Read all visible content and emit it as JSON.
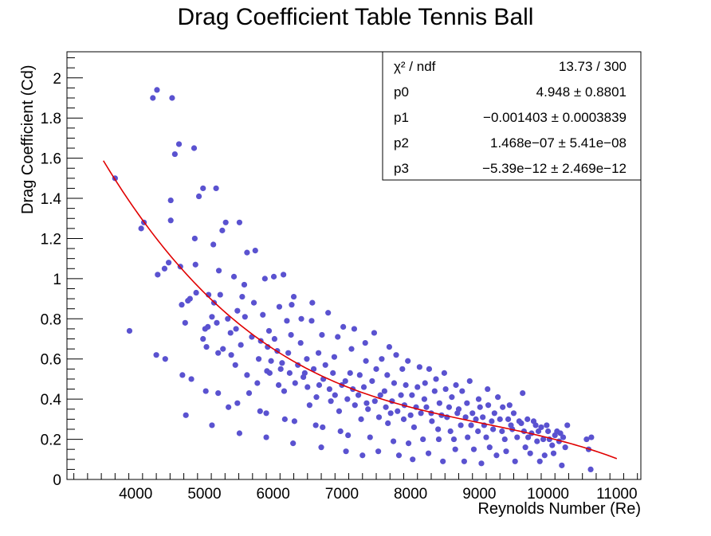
{
  "chart_data": {
    "type": "scatter",
    "title": "Drag Coefficient Table Tennis Ball",
    "xlabel": "Reynolds Number (Re)",
    "ylabel": "Drag Coefficient (Cd)",
    "xlim": [
      3000,
      11350
    ],
    "ylim": [
      0,
      2.13
    ],
    "x_ticks": [
      4000,
      5000,
      6000,
      7000,
      8000,
      9000,
      10000,
      11000
    ],
    "x_tick_labels": [
      "4000",
      "5000",
      "6000",
      "7000",
      "8000",
      "9000",
      "10000",
      "11000"
    ],
    "y_ticks": [
      0,
      0.2,
      0.4,
      0.6,
      0.8,
      1,
      1.2,
      1.4,
      1.6,
      1.8,
      2
    ],
    "y_tick_labels": [
      "0",
      "0.2",
      "0.4",
      "0.6",
      "0.8",
      "1",
      "1.2",
      "1.4",
      "1.6",
      "1.8",
      "2"
    ],
    "grid": false,
    "colors": {
      "points": "#5a52d0",
      "fit": "#e00000",
      "frame": "#000000"
    },
    "fit": {
      "function": "pol3",
      "x_range": [
        3530,
        11000
      ],
      "params": [
        4.948,
        -0.001403,
        1.468e-07,
        -5.39e-12
      ]
    },
    "stats_box": {
      "position": "top-right",
      "rows": [
        {
          "label": "χ² / ndf",
          "value": "13.73 / 300"
        },
        {
          "label": "p0",
          "value": "4.948 ± 0.8801"
        },
        {
          "label": "p1",
          "value": "−0.001403 ± 0.0003839"
        },
        {
          "label": "p2",
          "value": "1.468e−07 ± 5.41e−08"
        },
        {
          "label": "p3",
          "value": "−5.39e−12 ± 2.469e−12"
        }
      ]
    },
    "series": [
      {
        "points": [
          [
            3700,
            1.5
          ],
          [
            3910,
            0.74
          ],
          [
            4080,
            1.25
          ],
          [
            4120,
            1.28
          ],
          [
            4250,
            1.9
          ],
          [
            4310,
            1.94
          ],
          [
            4320,
            1.02
          ],
          [
            4300,
            0.62
          ],
          [
            4420,
            1.05
          ],
          [
            4430,
            0.6
          ],
          [
            4480,
            1.08
          ],
          [
            4510,
            1.29
          ],
          [
            4510,
            1.39
          ],
          [
            4530,
            1.9
          ],
          [
            4570,
            1.62
          ],
          [
            4630,
            1.67
          ],
          [
            4650,
            1.06
          ],
          [
            4670,
            0.87
          ],
          [
            4680,
            0.52
          ],
          [
            4720,
            0.78
          ],
          [
            4730,
            0.32
          ],
          [
            4760,
            0.89
          ],
          [
            4790,
            0.9
          ],
          [
            4810,
            0.5
          ],
          [
            4850,
            1.65
          ],
          [
            4860,
            1.2
          ],
          [
            4870,
            1.07
          ],
          [
            4880,
            0.93
          ],
          [
            4920,
            1.41
          ],
          [
            4980,
            1.45
          ],
          [
            4980,
            0.7
          ],
          [
            5010,
            0.75
          ],
          [
            5020,
            0.44
          ],
          [
            5030,
            0.66
          ],
          [
            5050,
            0.76
          ],
          [
            5060,
            0.92
          ],
          [
            5110,
            0.27
          ],
          [
            5110,
            0.81
          ],
          [
            5130,
            1.17
          ],
          [
            5140,
            0.88
          ],
          [
            5170,
            1.45
          ],
          [
            5180,
            0.78
          ],
          [
            5200,
            0.43
          ],
          [
            5200,
            0.63
          ],
          [
            5210,
            1.04
          ],
          [
            5230,
            0.92
          ],
          [
            5260,
            1.24
          ],
          [
            5270,
            0.65
          ],
          [
            5310,
            1.28
          ],
          [
            5340,
            0.8
          ],
          [
            5350,
            0.36
          ],
          [
            5380,
            0.73
          ],
          [
            5390,
            0.62
          ],
          [
            5430,
            1.01
          ],
          [
            5450,
            0.57
          ],
          [
            5460,
            0.75
          ],
          [
            5480,
            0.38
          ],
          [
            5480,
            0.84
          ],
          [
            5510,
            0.23
          ],
          [
            5510,
            1.28
          ],
          [
            5530,
            0.67
          ],
          [
            5550,
            0.91
          ],
          [
            5580,
            0.97
          ],
          [
            5590,
            0.81
          ],
          [
            5620,
            1.13
          ],
          [
            5620,
            0.52
          ],
          [
            5650,
            0.43
          ],
          [
            5690,
            0.71
          ],
          [
            5720,
            0.88
          ],
          [
            5740,
            1.14
          ],
          [
            5770,
            0.48
          ],
          [
            5790,
            0.6
          ],
          [
            5810,
            0.34
          ],
          [
            5820,
            0.69
          ],
          [
            5850,
            0.82
          ],
          [
            5880,
            1.0
          ],
          [
            5900,
            0.21
          ],
          [
            5900,
            0.33
          ],
          [
            5910,
            0.54
          ],
          [
            5920,
            0.66
          ],
          [
            5940,
            0.74
          ],
          [
            5950,
            0.53
          ],
          [
            5970,
            0.59
          ],
          [
            6010,
            1.01
          ],
          [
            6020,
            0.7
          ],
          [
            6060,
            0.64
          ],
          [
            6080,
            0.47
          ],
          [
            6090,
            0.86
          ],
          [
            6110,
            0.55
          ],
          [
            6130,
            0.58
          ],
          [
            6150,
            1.02
          ],
          [
            6160,
            0.44
          ],
          [
            6170,
            0.3
          ],
          [
            6200,
            0.79
          ],
          [
            6220,
            0.63
          ],
          [
            6240,
            0.53
          ],
          [
            6260,
            0.72
          ],
          [
            6270,
            0.87
          ],
          [
            6290,
            0.18
          ],
          [
            6300,
            0.91
          ],
          [
            6310,
            0.29
          ],
          [
            6320,
            0.48
          ],
          [
            6360,
            0.57
          ],
          [
            6400,
            0.68
          ],
          [
            6410,
            0.8
          ],
          [
            6440,
            0.51
          ],
          [
            6460,
            0.53
          ],
          [
            6490,
            0.6
          ],
          [
            6500,
            0.46
          ],
          [
            6530,
            0.37
          ],
          [
            6560,
            0.79
          ],
          [
            6570,
            0.88
          ],
          [
            6590,
            0.55
          ],
          [
            6620,
            0.27
          ],
          [
            6630,
            0.41
          ],
          [
            6660,
            0.63
          ],
          [
            6670,
            0.47
          ],
          [
            6700,
            0.16
          ],
          [
            6710,
            0.72
          ],
          [
            6720,
            0.26
          ],
          [
            6730,
            0.5
          ],
          [
            6760,
            0.57
          ],
          [
            6800,
            0.83
          ],
          [
            6820,
            0.45
          ],
          [
            6840,
            0.39
          ],
          [
            6870,
            0.53
          ],
          [
            6890,
            0.61
          ],
          [
            6900,
            0.42
          ],
          [
            6940,
            0.71
          ],
          [
            6960,
            0.34
          ],
          [
            6980,
            0.24
          ],
          [
            7000,
            0.47
          ],
          [
            7020,
            0.76
          ],
          [
            7050,
            0.49
          ],
          [
            7060,
            0.14
          ],
          [
            7080,
            0.4
          ],
          [
            7090,
            0.22
          ],
          [
            7120,
            0.53
          ],
          [
            7140,
            0.65
          ],
          [
            7160,
            0.45
          ],
          [
            7180,
            0.75
          ],
          [
            7190,
            0.37
          ],
          [
            7240,
            0.42
          ],
          [
            7260,
            0.52
          ],
          [
            7280,
            0.3
          ],
          [
            7300,
            0.12
          ],
          [
            7320,
            0.46
          ],
          [
            7340,
            0.68
          ],
          [
            7350,
            0.59
          ],
          [
            7360,
            0.38
          ],
          [
            7380,
            0.35
          ],
          [
            7410,
            0.21
          ],
          [
            7440,
            0.49
          ],
          [
            7470,
            0.73
          ],
          [
            7480,
            0.39
          ],
          [
            7500,
            0.55
          ],
          [
            7530,
            0.14
          ],
          [
            7540,
            0.31
          ],
          [
            7560,
            0.42
          ],
          [
            7580,
            0.6
          ],
          [
            7620,
            0.44
          ],
          [
            7640,
            0.36
          ],
          [
            7660,
            0.52
          ],
          [
            7670,
            0.28
          ],
          [
            7690,
            0.66
          ],
          [
            7710,
            0.33
          ],
          [
            7730,
            0.39
          ],
          [
            7750,
            0.19
          ],
          [
            7760,
            0.48
          ],
          [
            7790,
            0.62
          ],
          [
            7810,
            0.34
          ],
          [
            7830,
            0.12
          ],
          [
            7860,
            0.42
          ],
          [
            7880,
            0.55
          ],
          [
            7900,
            0.3
          ],
          [
            7910,
            0.37
          ],
          [
            7930,
            0.47
          ],
          [
            7960,
            0.59
          ],
          [
            7970,
            0.18
          ],
          [
            8000,
            0.32
          ],
          [
            8020,
            0.42
          ],
          [
            8030,
            0.1
          ],
          [
            8050,
            0.26
          ],
          [
            8080,
            0.36
          ],
          [
            8100,
            0.46
          ],
          [
            8130,
            0.56
          ],
          [
            8150,
            0.33
          ],
          [
            8180,
            0.2
          ],
          [
            8200,
            0.4
          ],
          [
            8210,
            0.48
          ],
          [
            8230,
            0.36
          ],
          [
            8260,
            0.13
          ],
          [
            8270,
            0.55
          ],
          [
            8300,
            0.33
          ],
          [
            8310,
            0.29
          ],
          [
            8350,
            0.44
          ],
          [
            8370,
            0.5
          ],
          [
            8400,
            0.25
          ],
          [
            8410,
            0.2
          ],
          [
            8420,
            0.38
          ],
          [
            8450,
            0.32
          ],
          [
            8470,
            0.09
          ],
          [
            8490,
            0.53
          ],
          [
            8510,
            0.45
          ],
          [
            8530,
            0.31
          ],
          [
            8560,
            0.36
          ],
          [
            8580,
            0.24
          ],
          [
            8600,
            0.41
          ],
          [
            8630,
            0.2
          ],
          [
            8650,
            0.15
          ],
          [
            8660,
            0.47
          ],
          [
            8680,
            0.33
          ],
          [
            8700,
            0.35
          ],
          [
            8730,
            0.27
          ],
          [
            8750,
            0.44
          ],
          [
            8780,
            0.09
          ],
          [
            8800,
            0.31
          ],
          [
            8820,
            0.38
          ],
          [
            8830,
            0.21
          ],
          [
            8860,
            0.49
          ],
          [
            8880,
            0.27
          ],
          [
            8900,
            0.33
          ],
          [
            8920,
            0.15
          ],
          [
            8950,
            0.3
          ],
          [
            8980,
            0.24
          ],
          [
            8990,
            0.4
          ],
          [
            9010,
            0.36
          ],
          [
            9030,
            0.08
          ],
          [
            9050,
            0.31
          ],
          [
            9070,
            0.27
          ],
          [
            9100,
            0.21
          ],
          [
            9120,
            0.45
          ],
          [
            9130,
            0.37
          ],
          [
            9150,
            0.16
          ],
          [
            9180,
            0.29
          ],
          [
            9200,
            0.25
          ],
          [
            9220,
            0.33
          ],
          [
            9250,
            0.12
          ],
          [
            9270,
            0.41
          ],
          [
            9300,
            0.3
          ],
          [
            9330,
            0.24
          ],
          [
            9340,
            0.36
          ],
          [
            9370,
            0.2
          ],
          [
            9390,
            0.14
          ],
          [
            9420,
            0.3
          ],
          [
            9440,
            0.37
          ],
          [
            9460,
            0.27
          ],
          [
            9480,
            0.25
          ],
          [
            9500,
            0.33
          ],
          [
            9520,
            0.09
          ],
          [
            9550,
            0.21
          ],
          [
            9580,
            0.29
          ],
          [
            9610,
            0.28
          ],
          [
            9630,
            0.43
          ],
          [
            9650,
            0.24
          ],
          [
            9670,
            0.16
          ],
          [
            9700,
            0.3
          ],
          [
            9710,
            0.21
          ],
          [
            9740,
            0.13
          ],
          [
            9760,
            0.23
          ],
          [
            9790,
            0.29
          ],
          [
            9820,
            0.27
          ],
          [
            9840,
            0.19
          ],
          [
            9860,
            0.24
          ],
          [
            9880,
            0.09
          ],
          [
            9900,
            0.26
          ],
          [
            9930,
            0.2
          ],
          [
            9950,
            0.12
          ],
          [
            9980,
            0.27
          ],
          [
            10000,
            0.24
          ],
          [
            10020,
            0.2
          ],
          [
            10060,
            0.17
          ],
          [
            10080,
            0.13
          ],
          [
            10100,
            0.22
          ],
          [
            10130,
            0.24
          ],
          [
            10160,
            0.19
          ],
          [
            10180,
            0.23
          ],
          [
            10200,
            0.07
          ],
          [
            10220,
            0.21
          ],
          [
            10250,
            0.16
          ],
          [
            10280,
            0.27
          ],
          [
            10560,
            0.2
          ],
          [
            10590,
            0.15
          ],
          [
            10620,
            0.05
          ],
          [
            10630,
            0.21
          ]
        ]
      }
    ]
  }
}
